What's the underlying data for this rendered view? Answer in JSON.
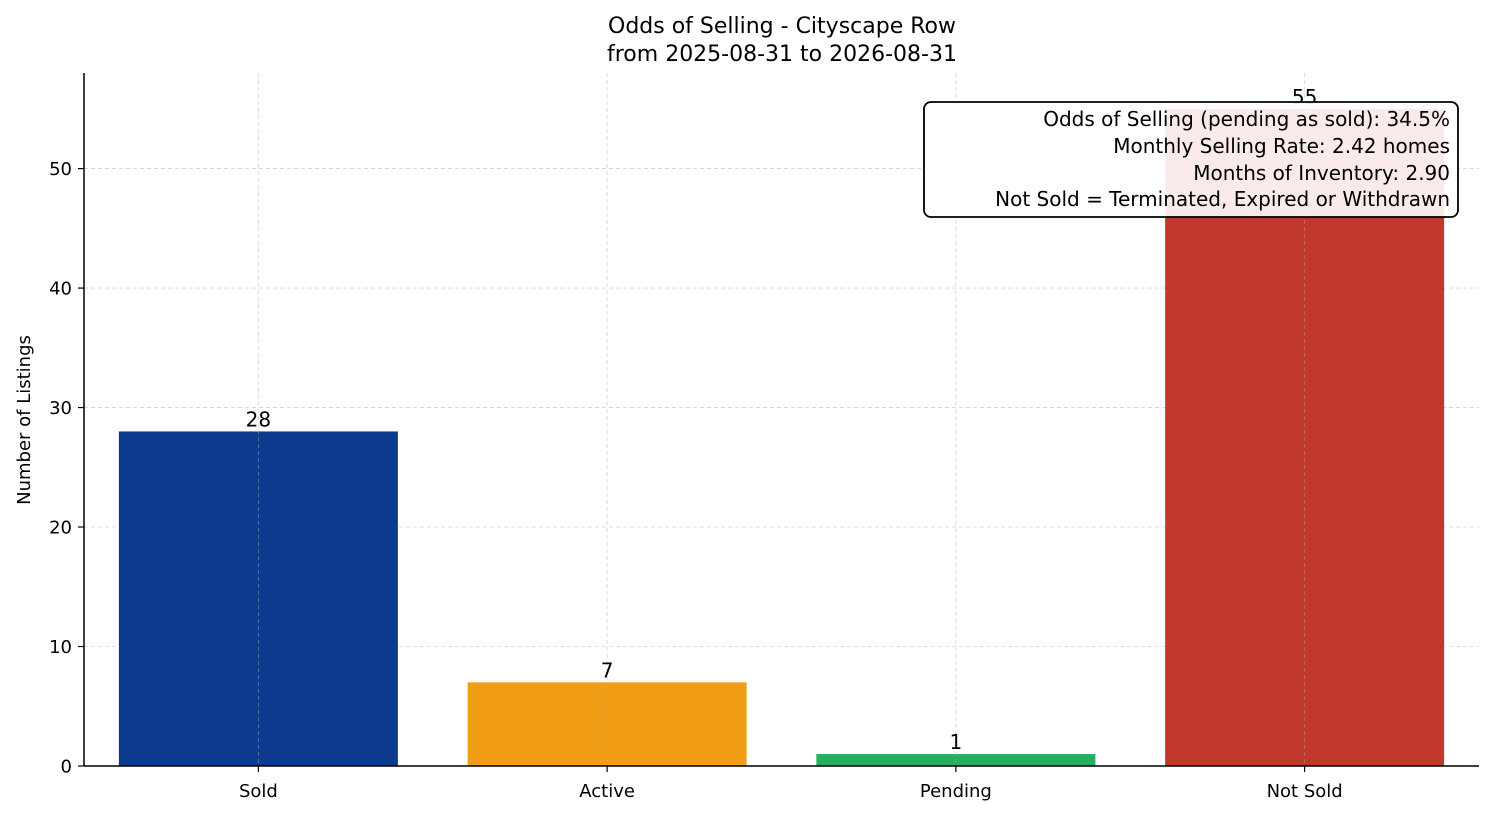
{
  "chart_data": {
    "type": "bar",
    "title": "Odds of Selling - Cityscape Row",
    "subtitle": "from 2025-08-31 to 2026-08-31",
    "xlabel": "",
    "ylabel": "Number of Listings",
    "categories": [
      "Sold",
      "Active",
      "Pending",
      "Not Sold"
    ],
    "values": [
      28,
      7,
      1,
      55
    ],
    "colors": [
      "#0b3a8f",
      "#f29d16",
      "#27ae60",
      "#c0392b"
    ],
    "ylim": [
      0,
      58
    ],
    "yticks": [
      0,
      10,
      20,
      30,
      40,
      50
    ],
    "grid": true,
    "info_box": {
      "placement": "top-right",
      "lines": [
        "Odds of Selling (pending as sold): 34.5%",
        "Monthly Selling Rate: 2.42 homes",
        "Months of Inventory: 2.90",
        "Not Sold = Terminated, Expired or Withdrawn"
      ]
    }
  }
}
